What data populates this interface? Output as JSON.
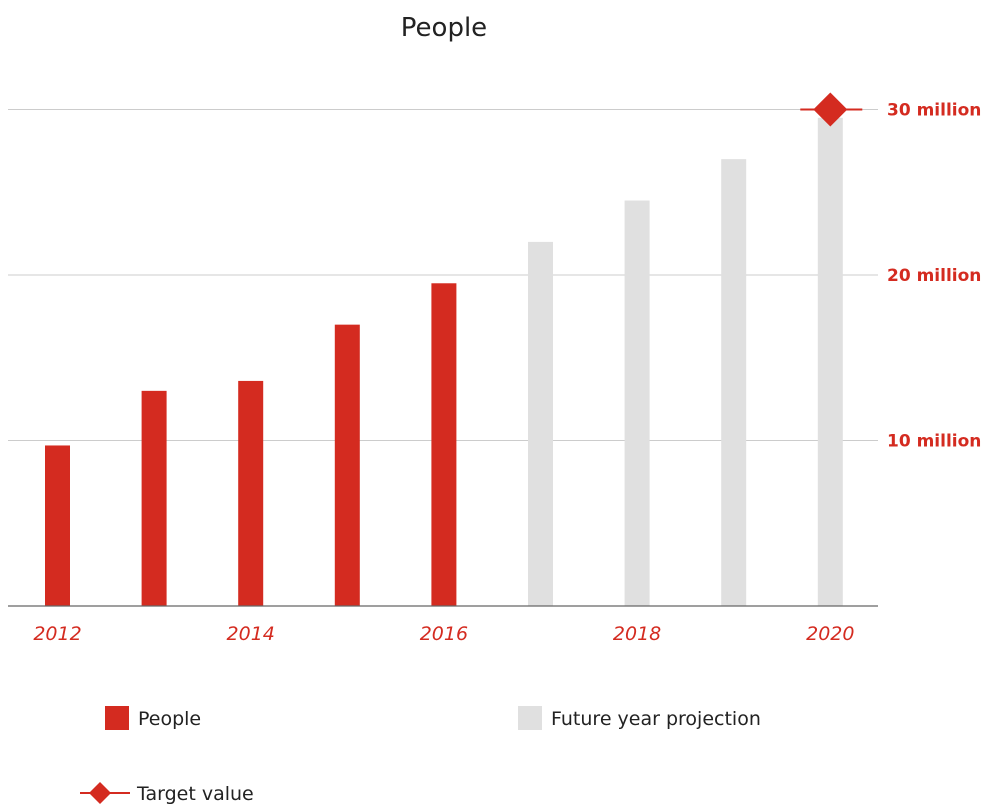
{
  "chart_data": {
    "type": "bar",
    "title": "People",
    "xlabel": "",
    "ylabel": "",
    "x": [
      2012,
      2013,
      2014,
      2015,
      2016,
      2017,
      2018,
      2019,
      2020
    ],
    "x_tick_labels": [
      "2012",
      "2014",
      "2016",
      "2018",
      "2020"
    ],
    "y_tick_labels": [
      "10 million",
      "20 million",
      "30 million"
    ],
    "y_ticks": [
      10000000,
      20000000,
      30000000
    ],
    "ylim": [
      0,
      30000000
    ],
    "grid": true,
    "legend_position": "bottom",
    "series": [
      {
        "name": "People",
        "color": "#d42b20",
        "x": [
          2012,
          2013,
          2014,
          2015,
          2016
        ],
        "values": [
          9700000,
          13000000,
          13600000,
          17000000,
          19500000
        ]
      },
      {
        "name": "Future year projection",
        "color": "#e0e0e0",
        "x": [
          2017,
          2018,
          2019,
          2020
        ],
        "values": [
          22000000,
          24500000,
          27000000,
          29500000
        ]
      },
      {
        "name": "Target value",
        "color": "#d42b20",
        "marker": "diamond",
        "x": [
          2020
        ],
        "values": [
          30000000
        ]
      }
    ]
  }
}
